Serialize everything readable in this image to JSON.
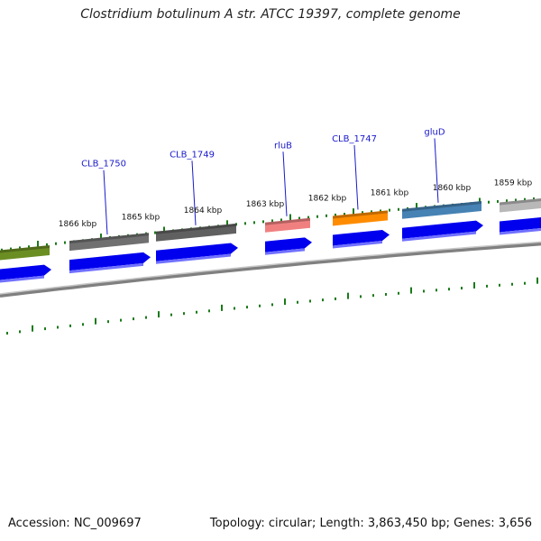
{
  "title": "Clostridium botulinum A str. ATCC 19397, complete genome",
  "footer": {
    "accession": "Accession: NC_009697",
    "stats": "Topology: circular; Length: 3,863,450 bp; Genes: 3,656"
  },
  "colors": {
    "tick": "#1a7a1a",
    "cds_strand": "#0000ee",
    "backbone": "#808080",
    "gene_label": "#1a1acc"
  },
  "scale_labels": [
    "1866 kbp",
    "1865 kbp",
    "1864 kbp",
    "1863 kbp",
    "1862 kbp",
    "1861 kbp",
    "1860 kbp",
    "1859 kbp"
  ],
  "genes": [
    {
      "name": "",
      "color": "#6b8e23"
    },
    {
      "name": "CLB_1750",
      "color": "#707070"
    },
    {
      "name": "CLB_1749",
      "color": "#606060"
    },
    {
      "name": "rluB",
      "color": "#f08080"
    },
    {
      "name": "CLB_1747",
      "color": "#ff8c00"
    },
    {
      "name": "gluD",
      "color": "#4682b4"
    },
    {
      "name": "",
      "color": "#b8b8b8"
    }
  ]
}
